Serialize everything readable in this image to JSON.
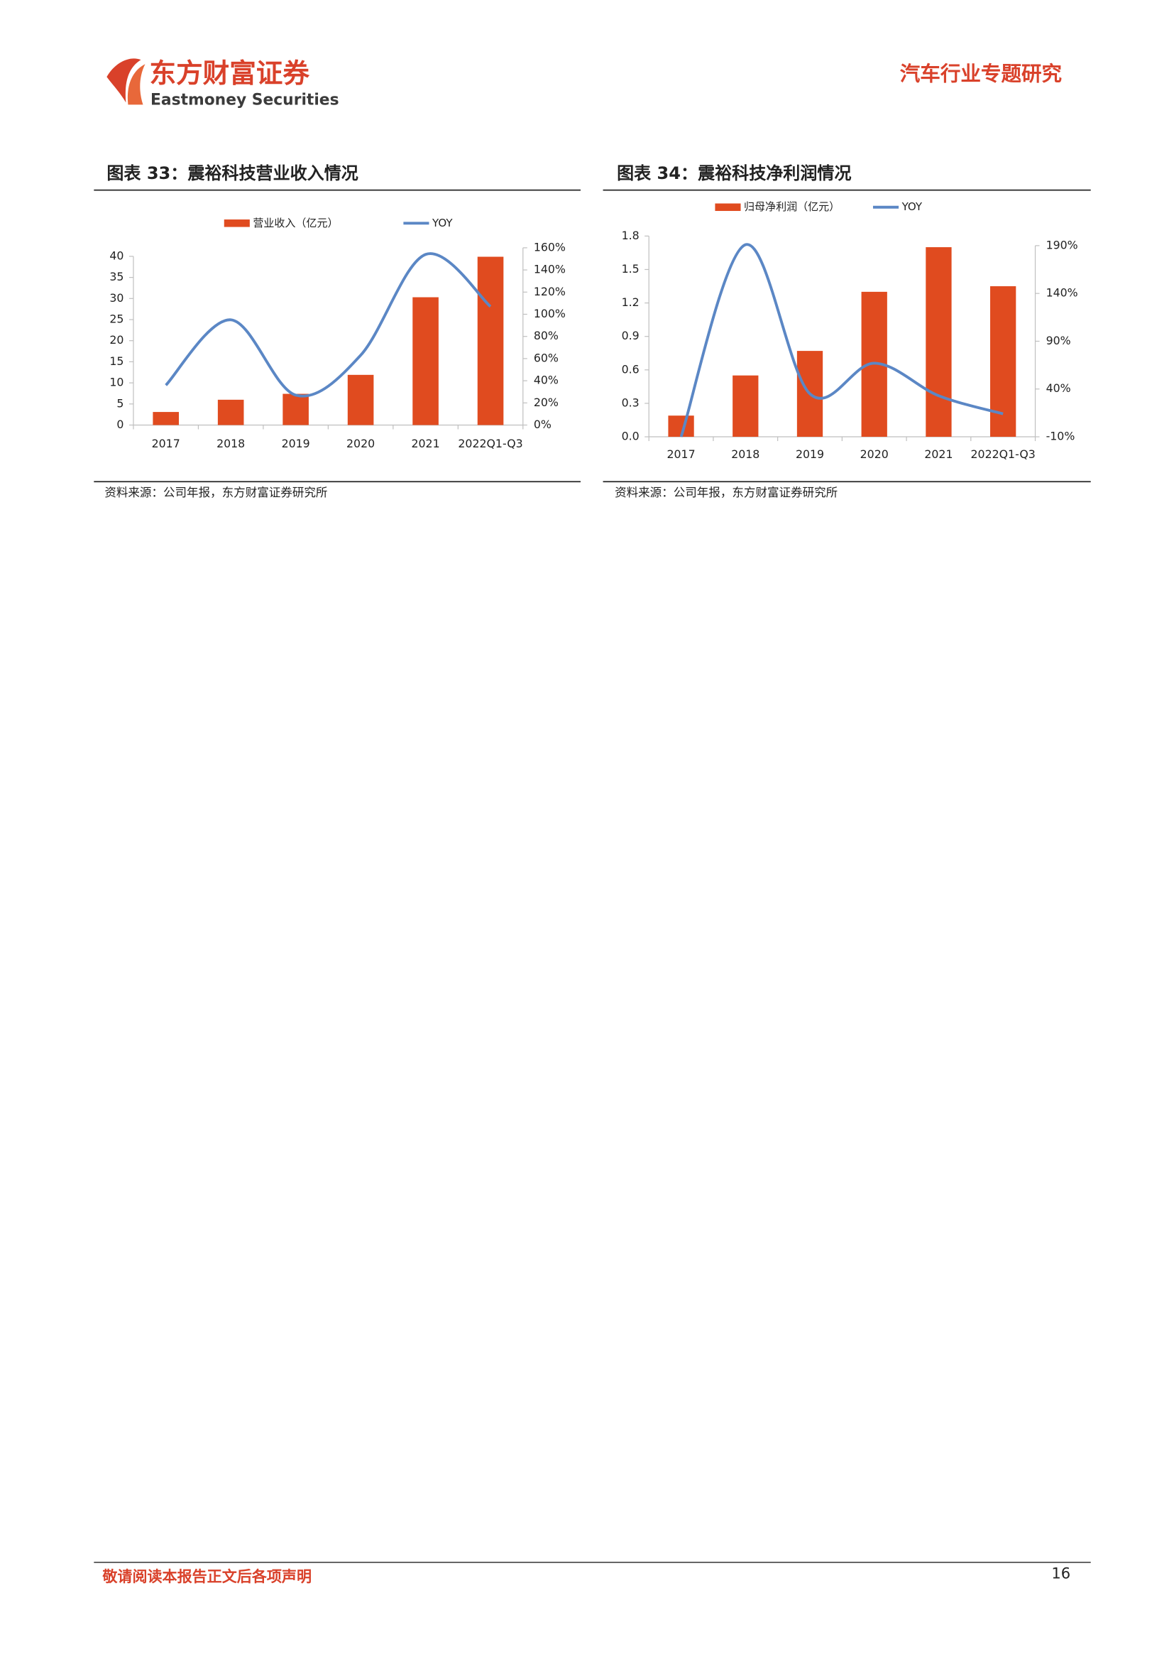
{
  "header": {
    "logo_cn": "东方财富证券",
    "logo_en": "Eastmoney Securities",
    "report_type": "汽车行业专题研究"
  },
  "figures": [
    {
      "title": "图表 33：震裕科技营业收入情况",
      "source": "资料来源：公司年报，东方财富证券研究所"
    },
    {
      "title": "图表 34：震裕科技净利润情况",
      "source": "资料来源：公司年报，东方财富证券研究所"
    }
  ],
  "chart_data": [
    {
      "type": "bar-line",
      "categories": [
        "2017",
        "2018",
        "2019",
        "2020",
        "2021",
        "2022Q1-Q3"
      ],
      "series": [
        {
          "name": "营业收入（亿元）",
          "color": "#e04b1f",
          "values": [
            3.1,
            6.0,
            7.4,
            11.9,
            30.3,
            39.9
          ]
        },
        {
          "name": "YOY",
          "color": "#5b87c5",
          "axis": "y2",
          "values": [
            36,
            95,
            27,
            63,
            154,
            107
          ]
        }
      ],
      "ylim": [
        0,
        40
      ],
      "yticks": [
        0,
        5,
        10,
        15,
        20,
        25,
        30,
        35,
        40
      ],
      "y2lim": [
        0,
        160
      ],
      "y2ticks": [
        {
          "value": 0,
          "label": "0%"
        },
        {
          "value": 20,
          "label": "20%"
        },
        {
          "value": 40,
          "label": "40%"
        },
        {
          "value": 60,
          "label": "60%"
        },
        {
          "value": 80,
          "label": "80%"
        },
        {
          "value": 100,
          "label": "100%"
        },
        {
          "value": 120,
          "label": "120%"
        },
        {
          "value": 140,
          "label": "140%"
        },
        {
          "value": 160,
          "label": "160%"
        }
      ],
      "legend": "top"
    },
    {
      "type": "bar-line",
      "categories": [
        "2017",
        "2018",
        "2019",
        "2020",
        "2021",
        "2022Q1-Q3"
      ],
      "series": [
        {
          "name": "归母净利润（亿元）",
          "color": "#e04b1f",
          "values": [
            0.19,
            0.55,
            0.77,
            1.3,
            1.7,
            1.35
          ]
        },
        {
          "name": "YOY",
          "color": "#5b87c5",
          "axis": "y2",
          "values": [
            -10,
            191,
            35,
            67,
            33,
            14
          ]
        }
      ],
      "ylim": [
        0,
        1.8
      ],
      "yticks": [
        {
          "value": 0,
          "label": "0.0"
        },
        0.3,
        0.6,
        0.9,
        1.2,
        1.5,
        1.8
      ],
      "y2lim": [
        -10,
        190
      ],
      "y2ticks": [
        {
          "value": -10,
          "label": "-10%"
        },
        {
          "value": 40,
          "label": "40%"
        },
        {
          "value": 90,
          "label": "90%"
        },
        {
          "value": 140,
          "label": "140%"
        },
        {
          "value": 190,
          "label": "190%"
        }
      ],
      "legend": "top"
    }
  ],
  "footer": {
    "disclaimer": "敬请阅读本报告正文后各项声明",
    "page_number": "16"
  }
}
